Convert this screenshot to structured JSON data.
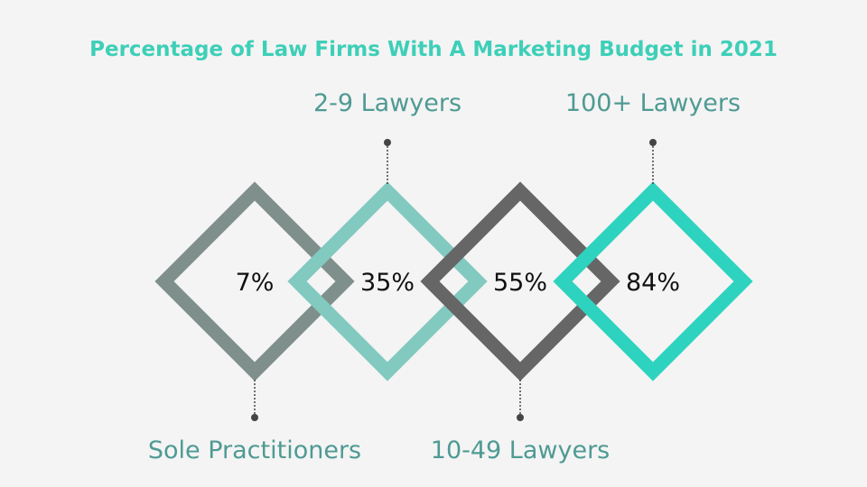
{
  "title": "Percentage of Law Firms With A Marketing Budget in 2021",
  "items": [
    {
      "label": "Sole Practitioners",
      "value": "7%",
      "color": "#7f8f8c"
    },
    {
      "label": "2-9 Lawyers",
      "value": "35%",
      "color": "#82c9bf"
    },
    {
      "label": "10-49 Lawyers",
      "value": "55%",
      "color": "#666666"
    },
    {
      "label": "100+ Lawyers",
      "value": "84%",
      "color": "#2ed3bf"
    }
  ]
}
